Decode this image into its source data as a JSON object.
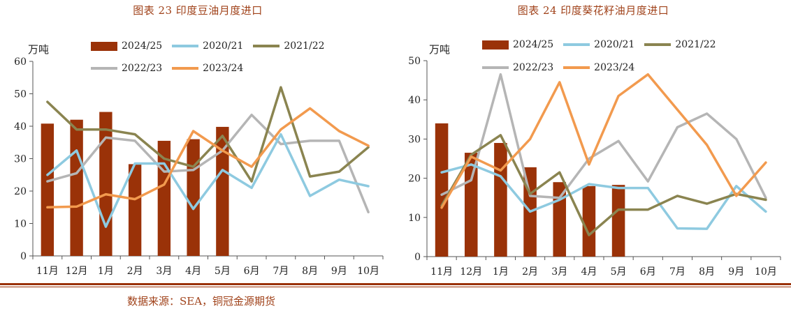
{
  "source_note": "数据来源：SEA，铜冠金源期货",
  "colors": {
    "title": "#a0421a",
    "bar": "#9a3208",
    "2020/21": "#8ecae0",
    "2021/22": "#8a8450",
    "2022/23": "#b5b5b5",
    "2023/24": "#f29a4e"
  },
  "chart_data": [
    {
      "type": "bar+line",
      "title": "图表 23  印度豆油月度进口",
      "ylabel": "万吨",
      "ylim": [
        0,
        60
      ],
      "yticks": [
        "0",
        "10",
        "20",
        "30",
        "40",
        "50",
        "60"
      ],
      "categories": [
        "11月",
        "12月",
        "1月",
        "2月",
        "3月",
        "4月",
        "5月",
        "6月",
        "7月",
        "8月",
        "9月",
        "10月"
      ],
      "bar_series": {
        "name": "2024/25",
        "values": [
          40.8,
          42.0,
          44.4,
          28.3,
          35.5,
          36.0,
          39.8
        ]
      },
      "line_series": [
        {
          "name": "2020/21",
          "values": [
            25,
            32.5,
            9,
            28.5,
            28.5,
            14.5,
            26.5,
            21,
            37.5,
            18.5,
            23.5,
            21.5
          ]
        },
        {
          "name": "2021/22",
          "values": [
            47.5,
            39,
            39,
            37.5,
            30,
            27.5,
            37,
            23,
            52,
            24.5,
            26,
            33.5
          ]
        },
        {
          "name": "2022/23",
          "values": [
            23,
            25.5,
            36.5,
            35.5,
            26,
            26.5,
            32.5,
            43.5,
            34.5,
            35.5,
            35.5,
            13.5
          ]
        },
        {
          "name": "2023/24",
          "values": [
            15,
            15.2,
            19,
            17.5,
            22,
            38.5,
            32.5,
            27.5,
            39,
            45.5,
            38.5,
            34
          ]
        }
      ]
    },
    {
      "type": "bar+line",
      "title": "图表 24  印度葵花籽油月度进口",
      "ylabel": "万吨",
      "ylim": [
        0,
        50
      ],
      "yticks": [
        "0",
        "10",
        "20",
        "30",
        "40",
        "50"
      ],
      "categories": [
        "11月",
        "12月",
        "1月",
        "2月",
        "3月",
        "4月",
        "5月",
        "6月",
        "7月",
        "8月",
        "9月",
        "10月"
      ],
      "bar_series": {
        "name": "2024/25",
        "values": [
          34,
          26.5,
          29,
          22.8,
          19,
          18,
          18.3
        ]
      },
      "line_series": [
        {
          "name": "2020/21",
          "values": [
            21.5,
            23.5,
            20.5,
            11.5,
            14.5,
            18.5,
            17.5,
            17.5,
            7.2,
            7.1,
            18,
            11.5
          ]
        },
        {
          "name": "2021/22",
          "values": [
            13,
            26,
            31,
            16,
            21.5,
            5.5,
            12,
            12,
            15.5,
            13.5,
            16,
            14.5
          ]
        },
        {
          "name": "2022/23",
          "values": [
            15.8,
            19.5,
            46.5,
            15.5,
            15,
            25,
            29.5,
            19.2,
            33,
            36.5,
            30,
            15
          ]
        },
        {
          "name": "2023/24",
          "values": [
            12.5,
            25.5,
            22,
            30,
            44.5,
            23.5,
            41,
            46.5,
            37.5,
            28.5,
            15.5,
            24
          ]
        }
      ]
    }
  ]
}
